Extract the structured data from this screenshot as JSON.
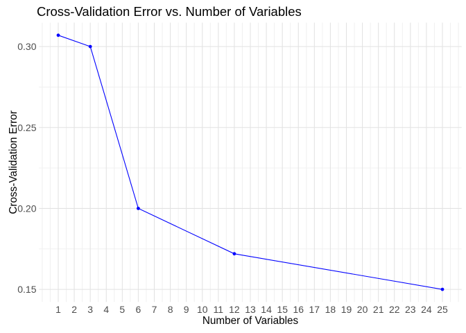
{
  "chart_data": {
    "type": "line",
    "title": "Cross-Validation Error vs. Number of Variables",
    "xlabel": "Number of Variables",
    "ylabel": "Cross-Validation Error",
    "x": [
      1,
      3,
      6,
      12,
      25
    ],
    "y": [
      0.307,
      0.3,
      0.2,
      0.172,
      0.15
    ],
    "x_ticks": [
      1,
      2,
      3,
      4,
      5,
      6,
      7,
      8,
      9,
      10,
      11,
      12,
      13,
      14,
      15,
      16,
      17,
      18,
      19,
      20,
      21,
      22,
      23,
      24,
      25
    ],
    "y_ticks": [
      0.15,
      0.2,
      0.25,
      0.3
    ],
    "y_tick_labels": [
      "0.15",
      "0.20",
      "0.25",
      "0.30"
    ],
    "x_minor_gridlines": [
      0,
      0.5,
      1.5,
      2.5,
      3.5,
      4.5,
      5.5,
      6.5,
      7.5,
      8.5,
      9.5,
      10.5,
      11.5,
      12.5,
      13.5,
      14.5,
      15.5,
      16.5,
      17.5,
      18.5,
      19.5,
      20.5,
      21.5,
      22.5,
      23.5,
      24.5,
      25.5,
      26
    ],
    "y_minor_gridlines": [
      0.175,
      0.225,
      0.275
    ],
    "xlim": [
      -0.2,
      26.2
    ],
    "ylim": [
      0.1422,
      0.3148
    ],
    "grid": true,
    "legend": false,
    "colors": {
      "line": "#0000FF",
      "point": "#0000FF",
      "grid_major": "#E2E2E2",
      "grid_minor": "#F0F0F0",
      "tick_text": "#4D4D4D",
      "title_text": "#000000",
      "background": "#FFFFFF"
    }
  }
}
